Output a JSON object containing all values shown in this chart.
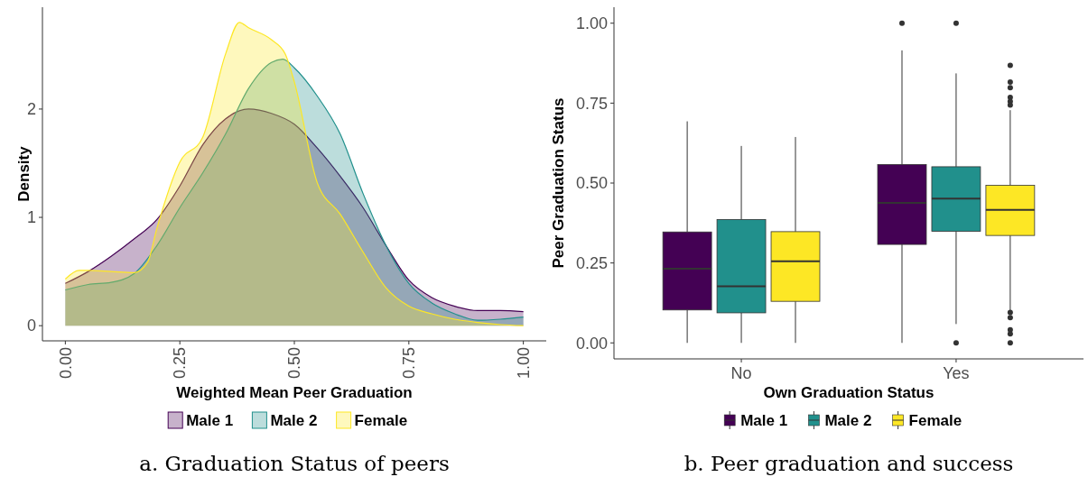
{
  "chart_data": [
    {
      "type": "area",
      "xlabel": "Weighted Mean Peer Graduation",
      "ylabel": "Density",
      "xlim": [
        -0.05,
        1.05
      ],
      "ylim": [
        -0.14,
        2.94
      ],
      "xticks": [
        {
          "value": 0,
          "label": "0.00"
        },
        {
          "value": 0.25,
          "label": "0.25"
        },
        {
          "value": 0.5,
          "label": "0.50"
        },
        {
          "value": 0.75,
          "label": "0.75"
        },
        {
          "value": 1,
          "label": "1.00"
        }
      ],
      "yticks": [
        0,
        1,
        2
      ],
      "grid": false,
      "legend": "bottom",
      "annotations": [
        "a. Graduation Status of peers"
      ],
      "series": [
        {
          "name": "Male 1",
          "color": "#440154",
          "x": [
            0,
            0.05,
            0.1,
            0.15,
            0.2,
            0.25,
            0.3,
            0.35,
            0.4,
            0.45,
            0.5,
            0.55,
            0.6,
            0.65,
            0.7,
            0.75,
            0.8,
            0.85,
            0.9,
            0.95,
            1
          ],
          "values": [
            0.39,
            0.5,
            0.64,
            0.8,
            0.98,
            1.29,
            1.67,
            1.91,
            2.0,
            1.96,
            1.86,
            1.64,
            1.38,
            1.09,
            0.74,
            0.42,
            0.26,
            0.18,
            0.14,
            0.14,
            0.13
          ]
        },
        {
          "name": "Male 2",
          "color": "#21908c",
          "x": [
            0,
            0.05,
            0.1,
            0.15,
            0.2,
            0.25,
            0.3,
            0.35,
            0.4,
            0.45,
            0.475,
            0.5,
            0.55,
            0.6,
            0.65,
            0.7,
            0.75,
            0.8,
            0.85,
            0.9,
            0.95,
            1
          ],
          "values": [
            0.33,
            0.38,
            0.4,
            0.48,
            0.74,
            1.09,
            1.41,
            1.77,
            2.19,
            2.43,
            2.46,
            2.38,
            2.12,
            1.77,
            1.22,
            0.74,
            0.39,
            0.21,
            0.11,
            0.05,
            0.06,
            0.08
          ]
        },
        {
          "name": "Female",
          "color": "#fde725",
          "x": [
            0,
            0.03,
            0.05,
            0.1,
            0.15,
            0.18,
            0.2,
            0.25,
            0.3,
            0.35,
            0.38,
            0.4,
            0.45,
            0.48,
            0.5,
            0.55,
            0.6,
            0.65,
            0.7,
            0.75,
            0.8,
            0.85,
            0.9,
            0.95,
            1
          ],
          "values": [
            0.43,
            0.51,
            0.51,
            0.5,
            0.49,
            0.59,
            0.9,
            1.51,
            1.74,
            2.51,
            2.8,
            2.75,
            2.64,
            2.51,
            2.25,
            1.32,
            1.03,
            0.68,
            0.35,
            0.18,
            0.11,
            0.06,
            0.03,
            0.01,
            0
          ]
        }
      ]
    },
    {
      "type": "box",
      "xlabel": "Own Graduation Status",
      "ylabel": "Peer Graduation Status",
      "categories": [
        "No",
        "Yes"
      ],
      "ylim": [
        -0.05,
        1.05
      ],
      "yticks": [
        {
          "value": 0,
          "label": "0.00"
        },
        {
          "value": 0.25,
          "label": "0.25"
        },
        {
          "value": 0.5,
          "label": "0.50"
        },
        {
          "value": 0.75,
          "label": "0.75"
        },
        {
          "value": 1,
          "label": "1.00"
        }
      ],
      "grid": false,
      "legend": "bottom",
      "annotations": [
        "b. Peer graduation and success"
      ],
      "series": [
        {
          "name": "Male 1",
          "color": "#440154",
          "boxes": [
            {
              "low": 0,
              "q1": 0.103,
              "median": 0.232,
              "q3": 0.347,
              "high": 0.693
            },
            {
              "low": 0,
              "q1": 0.308,
              "median": 0.438,
              "q3": 0.558,
              "high": 0.915,
              "outliers": [
                1.0
              ]
            }
          ]
        },
        {
          "name": "Male 2",
          "color": "#21908c",
          "boxes": [
            {
              "low": 0,
              "q1": 0.094,
              "median": 0.177,
              "q3": 0.386,
              "high": 0.616
            },
            {
              "low": 0.059,
              "q1": 0.349,
              "median": 0.451,
              "q3": 0.551,
              "high": 0.843,
              "outliers": [
                1.0,
                0
              ]
            }
          ]
        },
        {
          "name": "Female",
          "color": "#fde725",
          "boxes": [
            {
              "low": 0,
              "q1": 0.13,
              "median": 0.255,
              "q3": 0.348,
              "high": 0.644
            },
            {
              "low": 0.098,
              "q1": 0.336,
              "median": 0.416,
              "q3": 0.493,
              "high": 0.728,
              "outliers": [
                0.868,
                0.816,
                0.798,
                0.768,
                0.755,
                0.744,
                0.095,
                0.079,
                0.041,
                0.028,
                0
              ]
            }
          ]
        }
      ]
    }
  ]
}
